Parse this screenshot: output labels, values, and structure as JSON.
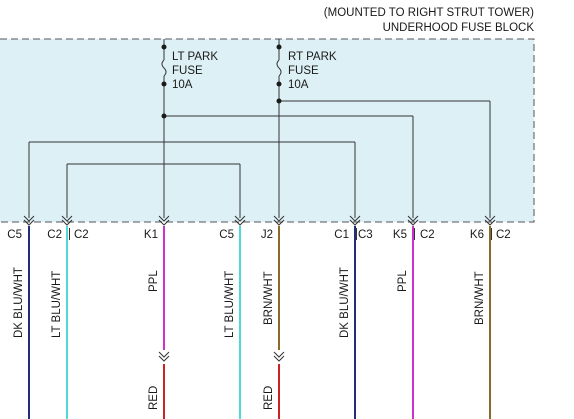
{
  "header": {
    "line1": "(MOUNTED TO RIGHT STRUT TOWER)",
    "line2": "UNDERHOOD FUSE BLOCK"
  },
  "fuses": [
    {
      "name_line1": "LT PARK",
      "name_line2": "FUSE",
      "rating": "10A"
    },
    {
      "name_line1": "RT PARK",
      "name_line2": "FUSE",
      "rating": "10A"
    }
  ],
  "connectors": [
    {
      "pin": "C5",
      "conn": ""
    },
    {
      "pin": "C2",
      "conn": "C2"
    },
    {
      "pin": "K1",
      "conn": ""
    },
    {
      "pin": "C5",
      "conn": ""
    },
    {
      "pin": "J2",
      "conn": ""
    },
    {
      "pin": "C1",
      "conn": "C3"
    },
    {
      "pin": "K5",
      "conn": "C2"
    },
    {
      "pin": "K6",
      "conn": "C2"
    }
  ],
  "wires": [
    {
      "label": "DK BLU/WHT",
      "color": "#1f2f7a"
    },
    {
      "label": "LT BLU/WHT",
      "color": "#4fd8d8"
    },
    {
      "label": "PPL",
      "color": "#cc33cc"
    },
    {
      "label": "LT BLU/WHT",
      "color": "#4fd8d8"
    },
    {
      "label": "BRN/WHT",
      "color": "#8a6a2a"
    },
    {
      "label": "DK BLU/WHT",
      "color": "#1f2f7a"
    },
    {
      "label": "PPL",
      "color": "#cc33cc"
    },
    {
      "label": "BRN/WHT",
      "color": "#8a6a2a"
    }
  ],
  "splices": [
    {
      "label": "RED",
      "color": "#cc2222"
    },
    {
      "label": "RED",
      "color": "#cc2222"
    }
  ],
  "colors": {
    "block_fill": "#ddf0f5",
    "block_border": "#555555",
    "line": "#333333"
  }
}
